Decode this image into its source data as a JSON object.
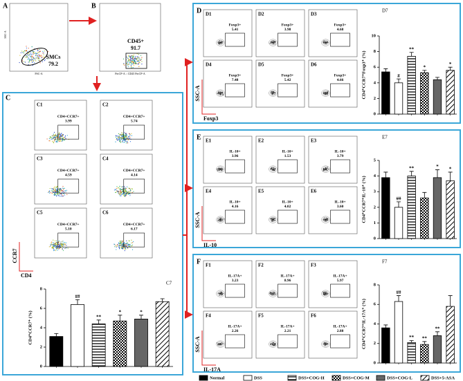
{
  "panels": {
    "A": {
      "letter": "A",
      "ylabel": "SSC-A",
      "xlabel": "FSC-A",
      "gate": "SMCs",
      "value": "79.2"
    },
    "B": {
      "letter": "B",
      "gate": "CD45+",
      "value": "91.7",
      "xlabel": "PerCP-A :: CD45 PerCP-A"
    },
    "C": {
      "letter": "C",
      "ylabel": "CCR7",
      "xlabel": "CD4",
      "plots": [
        {
          "label": "C1",
          "gate": "CD4+CCR7+",
          "value": "3.99"
        },
        {
          "label": "C2",
          "gate": "CD4+CCR7+",
          "value": "5.74"
        },
        {
          "label": "C3",
          "gate": "CD4+CCR7+",
          "value": "4.59"
        },
        {
          "label": "C4",
          "gate": "CD4+CCR7+",
          "value": "4.14"
        },
        {
          "label": "C5",
          "gate": "CD4+CCR7+",
          "value": "5.10"
        },
        {
          "label": "C6",
          "gate": "CD4+CCR7+",
          "value": "6.17"
        }
      ]
    },
    "D": {
      "letter": "D",
      "ylabel": "SSC-A",
      "xlabel": "Foxp3",
      "plots": [
        {
          "label": "D1",
          "gate": "Foxp3+",
          "value": "5.41"
        },
        {
          "label": "D2",
          "gate": "Foxp3+",
          "value": "3.98"
        },
        {
          "label": "D3",
          "gate": "Foxp3+",
          "value": "4.68"
        },
        {
          "label": "D4",
          "gate": "Foxp3+",
          "value": "7.48"
        },
        {
          "label": "D5",
          "gate": "Foxp3+",
          "value": "5.42"
        },
        {
          "label": "D6",
          "gate": "Foxp3+",
          "value": "4.66"
        }
      ]
    },
    "E": {
      "letter": "E",
      "ylabel": "SSC-A",
      "xlabel": "IL-10",
      "plots": [
        {
          "label": "E1",
          "gate": "IL-10+",
          "value": "3.96"
        },
        {
          "label": "E2",
          "gate": "IL-10+",
          "value": "1.53"
        },
        {
          "label": "E3",
          "gate": "IL-10+",
          "value": "3.79"
        },
        {
          "label": "E4",
          "gate": "IL-10+",
          "value": "4.16"
        },
        {
          "label": "E5",
          "gate": "IL-10+",
          "value": "4.02"
        },
        {
          "label": "E6",
          "gate": "IL-10+",
          "value": "3.60"
        }
      ]
    },
    "F": {
      "letter": "F",
      "ylabel": "SSC-A",
      "xlabel": "IL-17A",
      "plots": [
        {
          "label": "F1",
          "gate": "IL-17A+",
          "value": "3.23"
        },
        {
          "label": "F2",
          "gate": "IL-17A+",
          "value": "8.96"
        },
        {
          "label": "F3",
          "gate": "IL-17A+",
          "value": "5.97"
        },
        {
          "label": "F4",
          "gate": "IL-17A+",
          "value": "2.26"
        },
        {
          "label": "F5",
          "gate": "IL-17A+",
          "value": "2.21"
        },
        {
          "label": "F6",
          "gate": "IL-17A+",
          "value": "2.88"
        }
      ]
    }
  },
  "legend": [
    "Normal",
    "DSS",
    "DSS+COG-H",
    "DSS+COG-M",
    "DSS+COG-L",
    "DSS+5-ASA"
  ],
  "chart_data": [
    {
      "type": "bar",
      "title": "C7",
      "ylabel": "CD4⁺CCR7⁺ (%)",
      "values": [
        3.1,
        6.4,
        4.4,
        4.7,
        4.9,
        6.7
      ],
      "errors": [
        0.3,
        0.5,
        0.4,
        0.6,
        0.4,
        0.3
      ],
      "annotations": [
        null,
        "##",
        "**",
        "*",
        "*",
        null
      ],
      "ylim": [
        0,
        8
      ],
      "yticks": [
        0,
        2,
        4,
        6,
        8
      ]
    },
    {
      "type": "bar",
      "title": "D7",
      "ylabel": "CD4⁺CCR7⁺Foxp3⁺ (%)",
      "values": [
        5.4,
        4.0,
        7.4,
        5.3,
        4.4,
        5.6
      ],
      "errors": [
        0.4,
        0.5,
        0.5,
        0.3,
        0.3,
        0.4
      ],
      "annotations": [
        null,
        "#",
        "**",
        "*",
        null,
        "*"
      ],
      "ylim": [
        0,
        10
      ],
      "yticks": [
        0,
        2,
        4,
        6,
        8,
        10
      ]
    },
    {
      "type": "bar",
      "title": "E7",
      "ylabel": "CD4⁺CCR7⁺IL-10⁺ (%)",
      "values": [
        3.9,
        2.0,
        4.0,
        2.6,
        3.9,
        3.7
      ],
      "errors": [
        0.35,
        0.35,
        0.3,
        0.35,
        0.5,
        0.55
      ],
      "annotations": [
        null,
        "##",
        "**",
        null,
        "*",
        "*"
      ],
      "ylim": [
        0,
        5
      ],
      "yticks": [
        0,
        1,
        2,
        3,
        4,
        5
      ]
    },
    {
      "type": "bar",
      "title": "F7",
      "ylabel": "CD4⁺CCR7⁺IL-17A⁺ (%)",
      "values": [
        3.6,
        6.3,
        2.1,
        1.9,
        2.8,
        5.8
      ],
      "errors": [
        0.3,
        0.6,
        0.2,
        0.3,
        0.4,
        1.1
      ],
      "annotations": [
        null,
        "##",
        "**",
        "**",
        "**",
        null
      ],
      "ylim": [
        0,
        8
      ],
      "yticks": [
        0,
        2,
        4,
        6,
        8
      ]
    }
  ]
}
